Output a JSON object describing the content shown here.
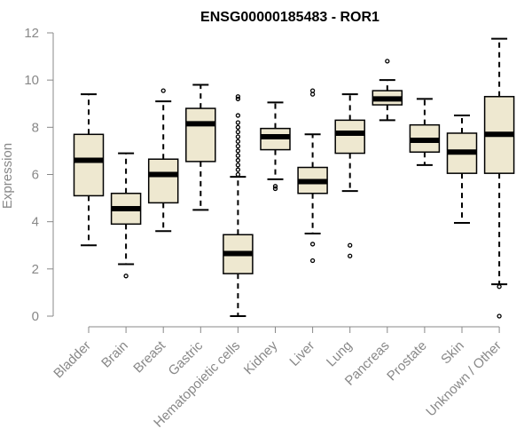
{
  "chart_data": {
    "type": "box",
    "title": "ENSG00000185483 - ROR1",
    "xlabel": "",
    "ylabel": "Expression",
    "ylim": [
      0,
      12
    ],
    "yticks": [
      0,
      2,
      4,
      6,
      8,
      10,
      12
    ],
    "grid": false,
    "box_color": "#EEE8D0",
    "categories": [
      "Bladder",
      "Brain",
      "Breast",
      "Gastric",
      "Hematopoietic cells",
      "Kidney",
      "Liver",
      "Lung",
      "Pancreas",
      "Prostate",
      "Skin",
      "Unknown / Other"
    ],
    "boxes": [
      {
        "min": 3.0,
        "q1": 5.1,
        "median": 6.6,
        "q3": 7.7,
        "max": 9.4,
        "outliers": []
      },
      {
        "min": 2.2,
        "q1": 3.9,
        "median": 4.55,
        "q3": 5.2,
        "max": 6.9,
        "outliers": [
          1.7
        ]
      },
      {
        "min": 3.6,
        "q1": 4.8,
        "median": 6.0,
        "q3": 6.65,
        "max": 9.1,
        "outliers": [
          9.55
        ]
      },
      {
        "min": 4.5,
        "q1": 6.55,
        "median": 8.15,
        "q3": 8.8,
        "max": 9.8,
        "outliers": []
      },
      {
        "min": 0.0,
        "q1": 1.8,
        "median": 2.65,
        "q3": 3.45,
        "max": 5.9,
        "outliers": [
          6.0,
          6.2,
          6.4,
          6.6,
          6.8,
          7.0,
          7.2,
          7.4,
          7.6,
          7.8,
          8.0,
          8.2,
          8.5,
          9.2,
          9.3
        ]
      },
      {
        "min": 5.8,
        "q1": 7.05,
        "median": 7.6,
        "q3": 7.95,
        "max": 9.05,
        "outliers": [
          5.4,
          5.5
        ]
      },
      {
        "min": 3.5,
        "q1": 5.2,
        "median": 5.7,
        "q3": 6.3,
        "max": 7.7,
        "outliers": [
          2.35,
          3.05,
          9.4,
          9.55
        ]
      },
      {
        "min": 5.3,
        "q1": 6.9,
        "median": 7.75,
        "q3": 8.3,
        "max": 9.4,
        "outliers": [
          2.55,
          3.0
        ]
      },
      {
        "min": 8.3,
        "q1": 8.95,
        "median": 9.2,
        "q3": 9.55,
        "max": 10.0,
        "outliers": [
          10.8
        ]
      },
      {
        "min": 6.4,
        "q1": 6.95,
        "median": 7.45,
        "q3": 8.1,
        "max": 9.2,
        "outliers": []
      },
      {
        "min": 3.95,
        "q1": 6.05,
        "median": 6.95,
        "q3": 7.75,
        "max": 8.5,
        "outliers": []
      },
      {
        "min": 1.35,
        "q1": 6.05,
        "median": 7.7,
        "q3": 9.3,
        "max": 11.75,
        "outliers": [
          0.0,
          1.25
        ]
      }
    ]
  }
}
